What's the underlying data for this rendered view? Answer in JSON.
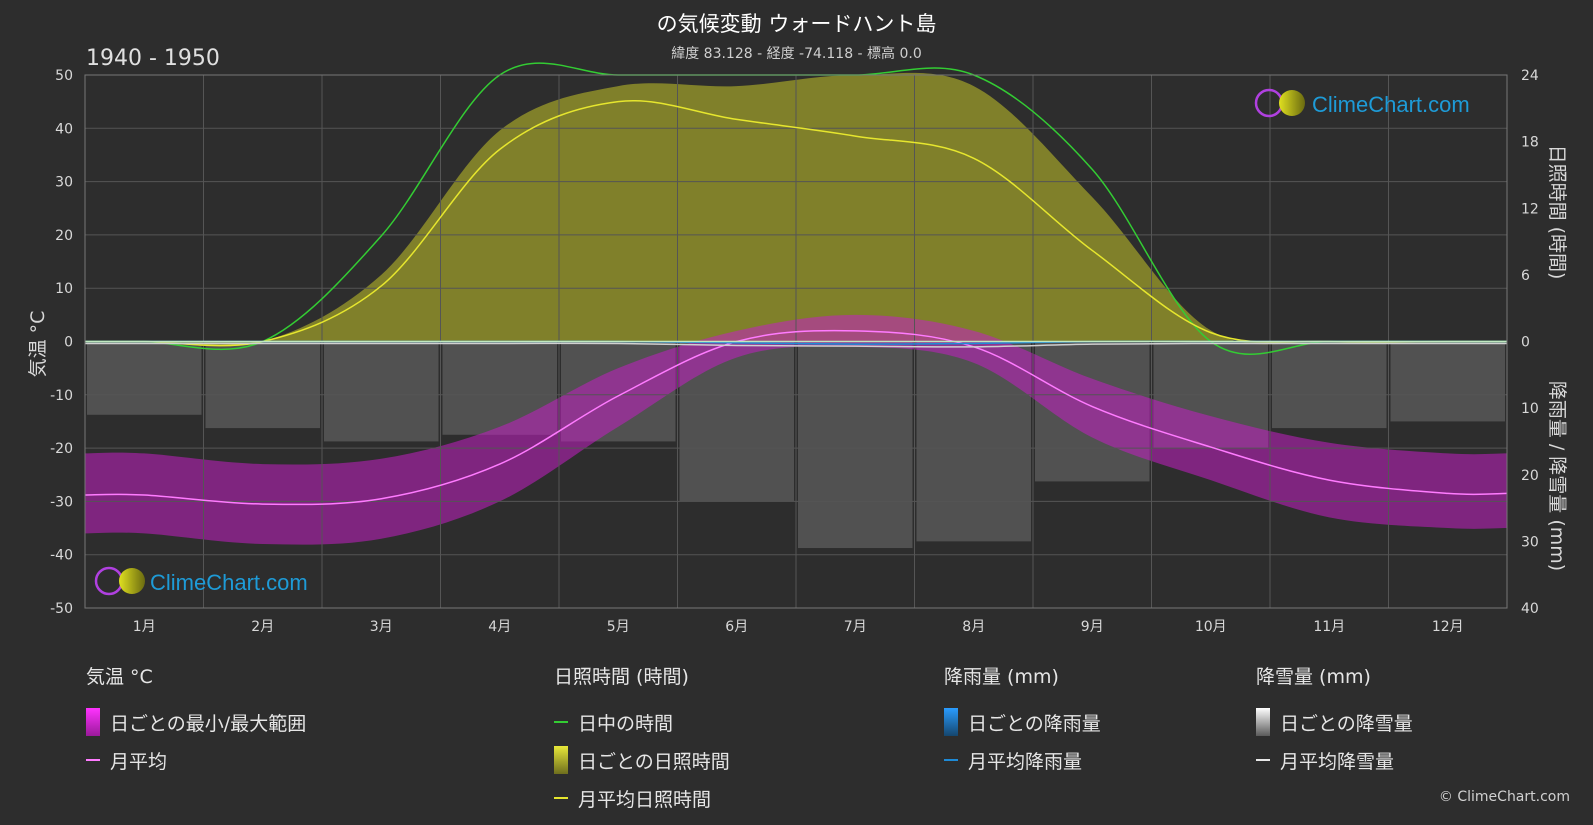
{
  "title": "の気候変動 ウォードハント島",
  "subtitle": "緯度 83.128 - 経度 -74.118 - 標高 0.0",
  "period": "1940 - 1950",
  "watermark": "ClimeChart.com",
  "copyright": "© ClimeChart.com",
  "colors": {
    "background": "#2d2d2d",
    "daylight": "#33cc33",
    "sunshine_fill": "#8f8f2a",
    "sunshine_line": "#e6e62e",
    "temp_range": "#c21fc2",
    "temp_line": "#ff7bff",
    "rain": "#1e8ad6",
    "snow": "#5a5a5a",
    "snow_line": "#d0d0d0",
    "grid": "#555555",
    "brand": "#1e9bd7"
  },
  "legend": {
    "temperature": {
      "header": "気温 °C",
      "range": "日ごとの最小/最大範囲",
      "mean": "月平均"
    },
    "sunshine": {
      "header": "日照時間 (時間)",
      "daylight": "日中の時間",
      "daily": "日ごとの日照時間",
      "mean": "月平均日照時間"
    },
    "rain": {
      "header": "降雨量 (mm)",
      "daily": "日ごとの降雨量",
      "mean": "月平均降雨量"
    },
    "snow": {
      "header": "降雪量 (mm)",
      "daily": "日ごとの降雪量",
      "mean": "月平均降雪量"
    }
  },
  "chart_data": {
    "type": "line",
    "xlabel": "",
    "ylabel_left": "気温 °C",
    "ylabel_right_top": "日照時間 (時間)",
    "ylabel_right_bottom": "降雨量 / 降雪量 (mm)",
    "categories": [
      "1月",
      "2月",
      "3月",
      "4月",
      "5月",
      "6月",
      "7月",
      "8月",
      "9月",
      "10月",
      "11月",
      "12月"
    ],
    "y_left": {
      "min": -50,
      "max": 50,
      "ticks": [
        50,
        40,
        30,
        20,
        10,
        0,
        -10,
        -20,
        -30,
        -40,
        -50
      ]
    },
    "y_right_top": {
      "min": 0,
      "max": 24,
      "ticks": [
        24,
        18,
        12,
        6,
        0
      ]
    },
    "y_right_bottom": {
      "min": 0,
      "max": 40,
      "ticks": [
        10,
        20,
        30,
        40
      ]
    },
    "grid": true,
    "series": [
      {
        "name": "月平均",
        "unit": "°C",
        "values": [
          -28.8,
          -30.5,
          -29.5,
          -23,
          -10.2,
          0,
          2,
          -1,
          -12.2,
          -19.8,
          -26,
          -28.5
        ]
      },
      {
        "name": "日ごとの最小/最大範囲",
        "unit": "°C",
        "min": [
          -36,
          -38,
          -37,
          -30,
          -16,
          -3,
          -1,
          -4,
          -18,
          -26,
          -33,
          -35
        ],
        "max": [
          -21,
          -23,
          -22,
          -16,
          -5,
          2,
          5,
          2,
          -7,
          -14,
          -19,
          -21
        ]
      },
      {
        "name": "日中の時間",
        "unit": "hours",
        "values": [
          0,
          0,
          9.5,
          24,
          24,
          24,
          24,
          24,
          15.5,
          0,
          0,
          0
        ]
      },
      {
        "name": "月平均日照時間",
        "unit": "hours",
        "values": [
          0,
          0,
          5,
          17.3,
          21.6,
          20,
          18.5,
          16.5,
          8.2,
          0.8,
          0,
          0
        ]
      },
      {
        "name": "日ごとの日照時間",
        "unit": "hours",
        "values": [
          0,
          0,
          6,
          19,
          23,
          23,
          24,
          23,
          13,
          1,
          0,
          0
        ]
      },
      {
        "name": "月平均降雨量",
        "unit": "mm",
        "values": [
          0,
          0,
          0,
          0,
          0,
          0.2,
          0.4,
          0.3,
          0,
          0,
          0,
          0
        ]
      },
      {
        "name": "月平均降雪量",
        "unit": "mm",
        "values": [
          0.3,
          0.3,
          0.3,
          0.3,
          0.3,
          0.6,
          0.7,
          0.8,
          0.4,
          0.3,
          0.3,
          0.3
        ]
      },
      {
        "name": "日ごとの降雪量",
        "unit": "mm",
        "values": [
          11,
          13,
          15,
          14,
          15,
          24,
          31,
          30,
          21,
          16,
          13,
          12
        ]
      }
    ]
  }
}
